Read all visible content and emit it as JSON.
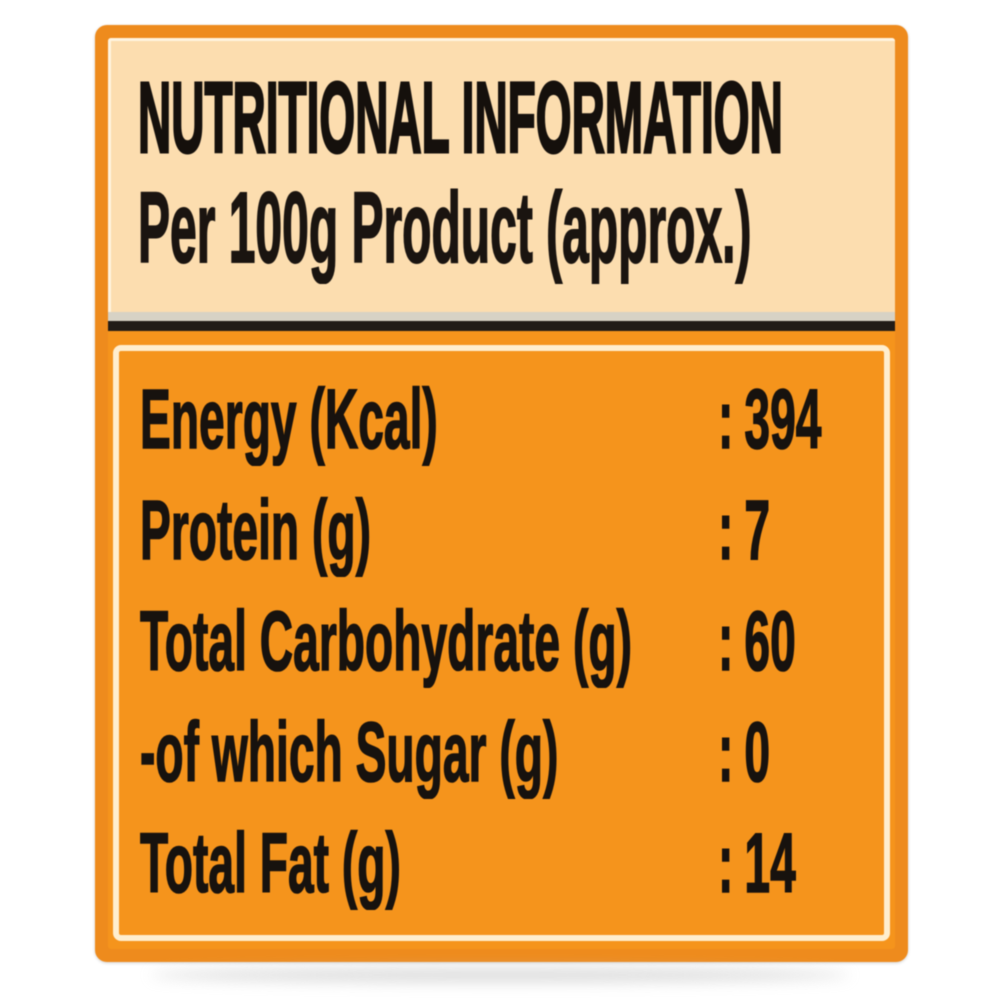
{
  "label": {
    "header": {
      "title": "NUTRITIONAL INFORMATION",
      "subtitle": "Per 100g Product (approx.)"
    },
    "rows": [
      {
        "name": "Energy (Kcal)",
        "separator": ":",
        "value": "394"
      },
      {
        "name": "Protein (g)",
        "separator": ":",
        "value": "7"
      },
      {
        "name": "Total Carbohydrate (g)",
        "separator": ":",
        "value": "60"
      },
      {
        "name": "-of which Sugar (g)",
        "separator": ":",
        "value": "0"
      },
      {
        "name": "Total Fat (g)",
        "separator": ":",
        "value": "14"
      }
    ],
    "colors": {
      "border_orange": "#ee8b1d",
      "header_cream": "#fcddaf",
      "body_orange": "#f5941c",
      "text_black": "#17120e",
      "divider_dark": "#211c17",
      "divider_light": "#d7d2c5",
      "inner_highlight": "#fff2d8"
    }
  }
}
